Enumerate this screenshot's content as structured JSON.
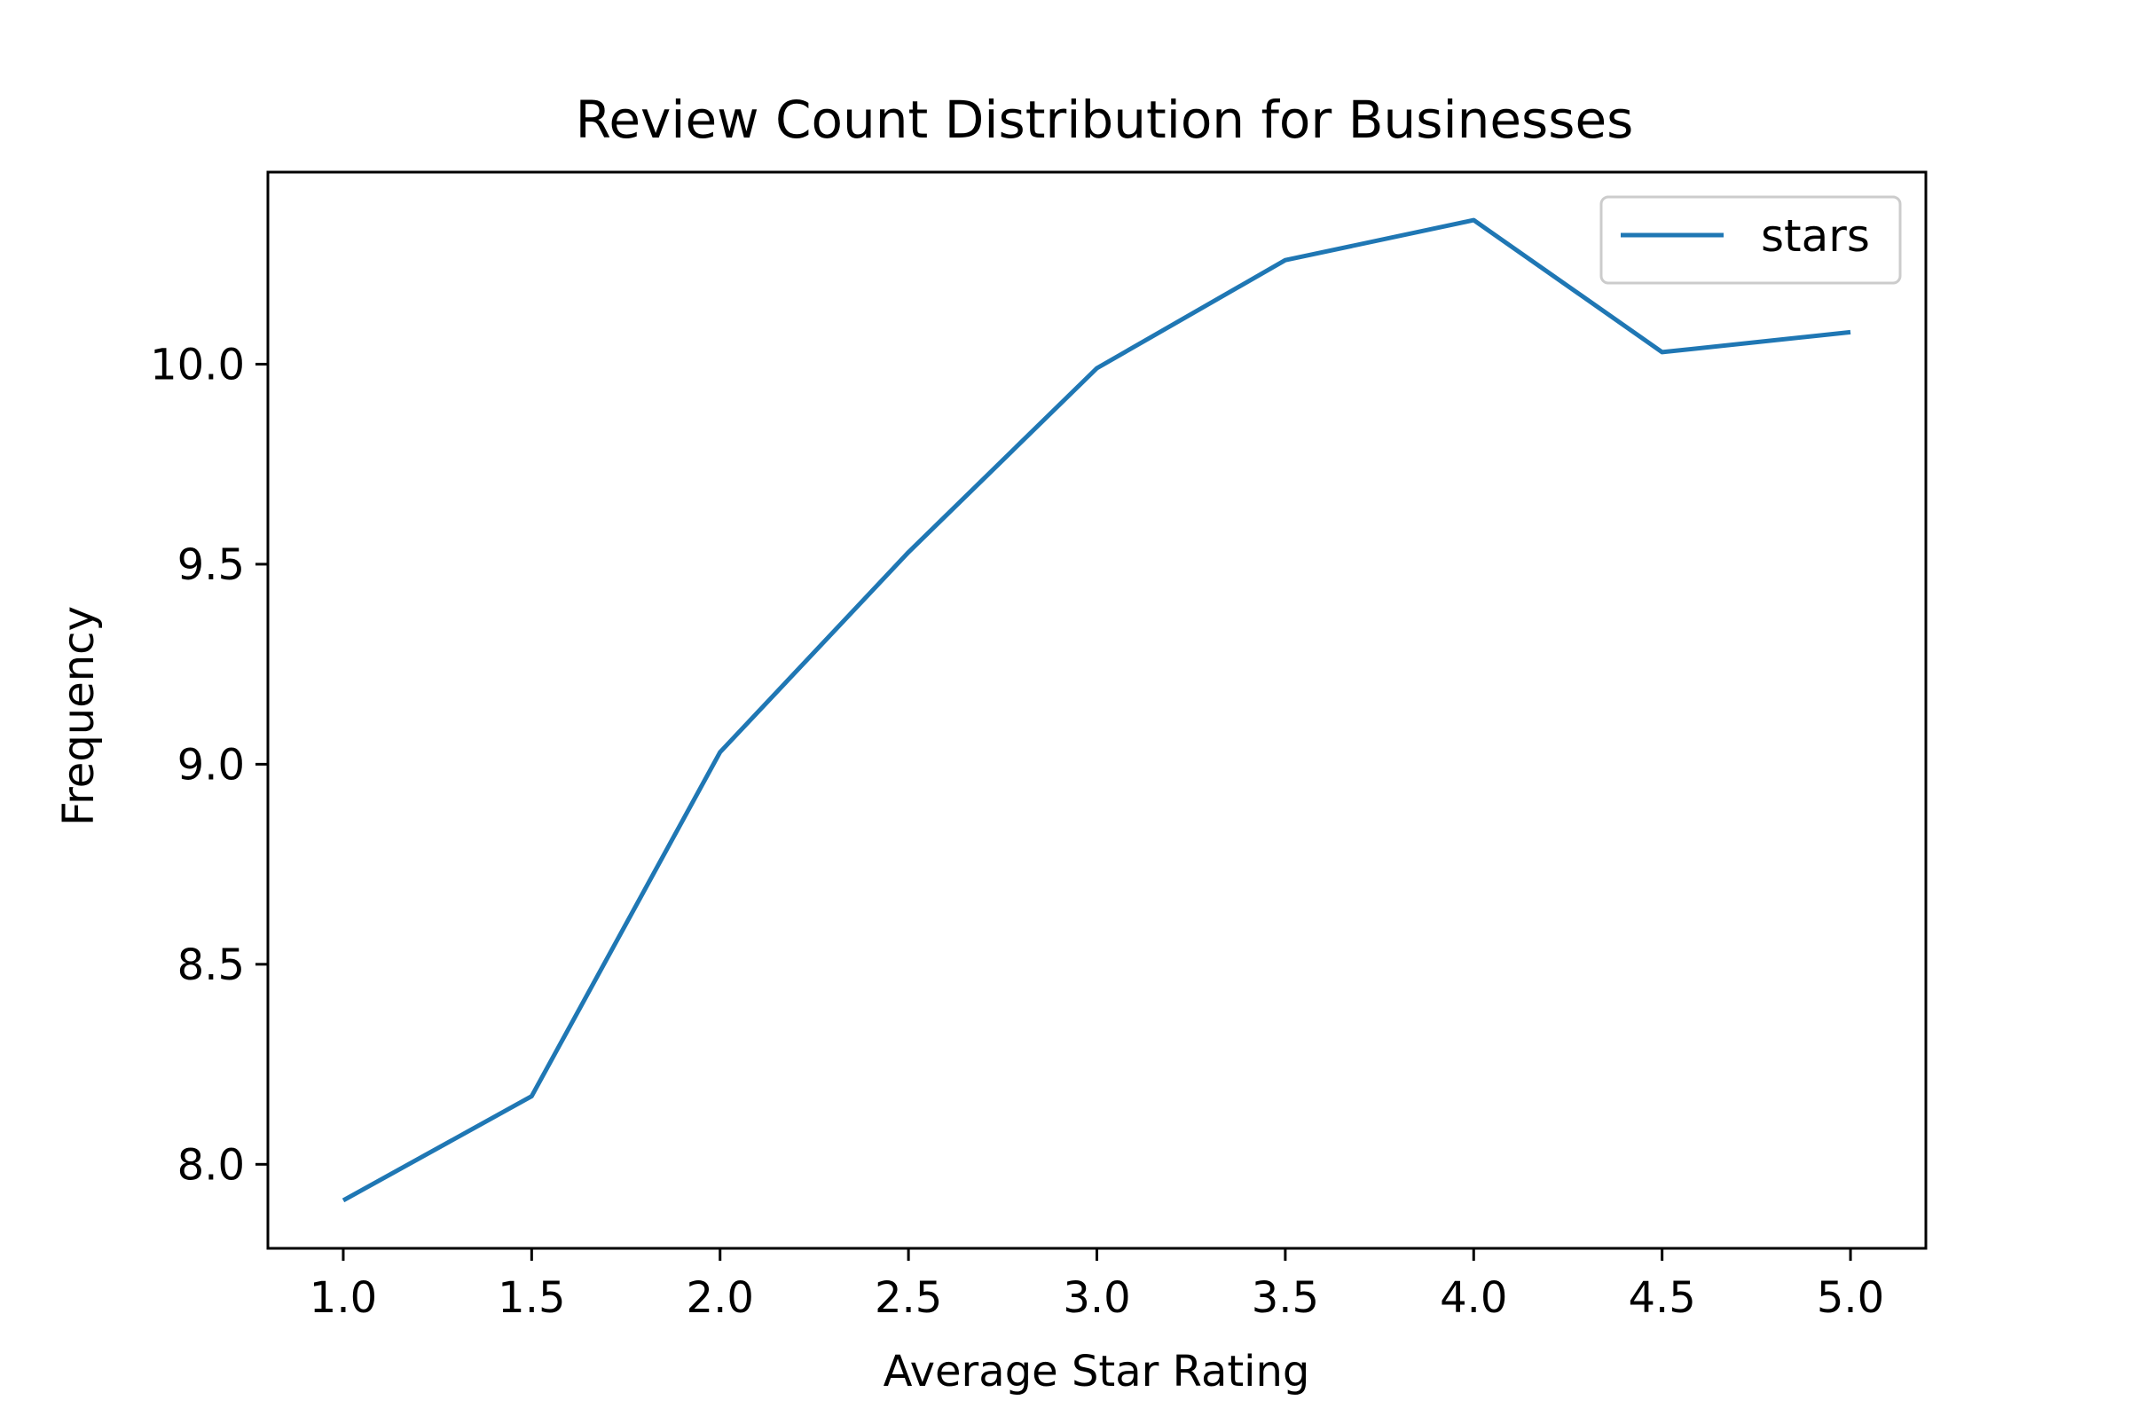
{
  "chart_data": {
    "type": "line",
    "title": "Review Count Distribution for Businesses",
    "xlabel": "Average Star Rating",
    "ylabel": "Frequency",
    "x": [
      1.0,
      1.5,
      2.0,
      2.5,
      3.0,
      3.5,
      4.0,
      4.5,
      5.0
    ],
    "series": [
      {
        "name": "stars",
        "color": "#1f77b4",
        "values": [
          7.91,
          8.17,
          9.03,
          9.53,
          9.99,
          10.26,
          10.36,
          10.03,
          10.08
        ]
      }
    ],
    "xlim": [
      0.8,
      5.2
    ],
    "ylim": [
      7.79,
      10.48
    ],
    "x_ticks": [
      1.0,
      1.5,
      2.0,
      2.5,
      3.0,
      3.5,
      4.0,
      4.5,
      5.0
    ],
    "x_tick_labels": [
      "1.0",
      "1.5",
      "2.0",
      "2.5",
      "3.0",
      "3.5",
      "4.0",
      "4.5",
      "5.0"
    ],
    "y_ticks": [
      8.0,
      8.5,
      9.0,
      9.5,
      10.0
    ],
    "y_tick_labels": [
      "8.0",
      "8.5",
      "9.0",
      "9.5",
      "10.0"
    ],
    "grid": false,
    "legend_position": "top-right"
  }
}
